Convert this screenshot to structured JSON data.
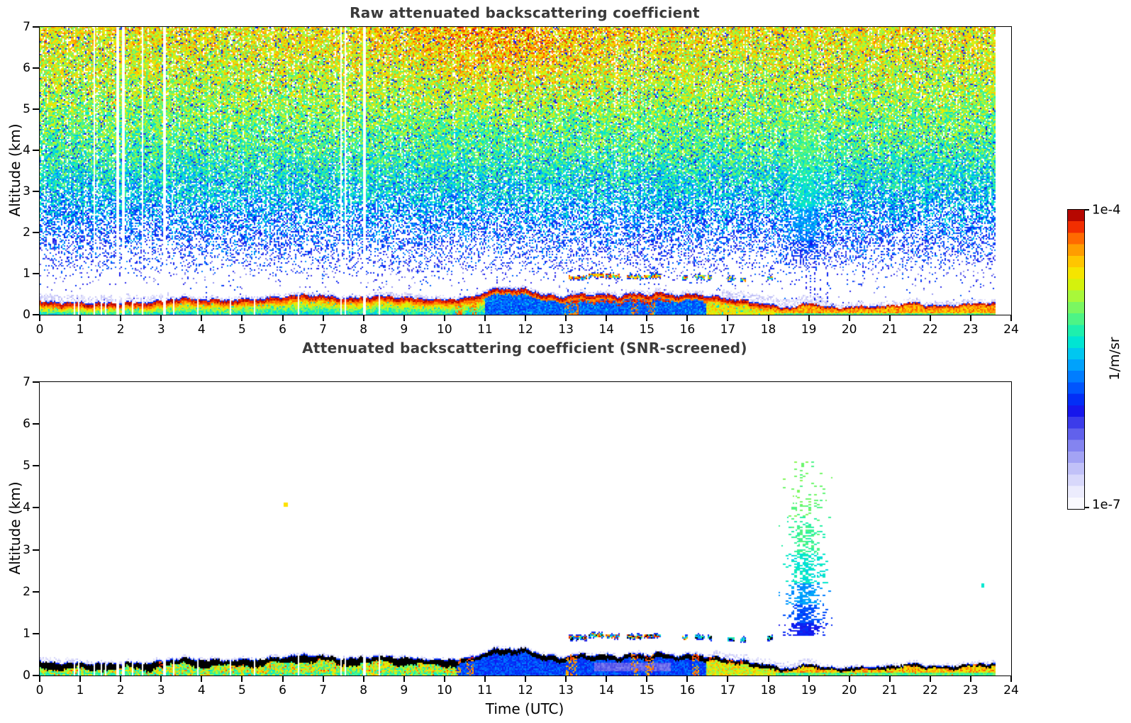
{
  "axes": {
    "xlabel": "Time (UTC)",
    "ylabel": "Altitude (km)",
    "x_ticks": [
      "0",
      "1",
      "2",
      "3",
      "4",
      "5",
      "6",
      "7",
      "8",
      "9",
      "10",
      "11",
      "12",
      "13",
      "14",
      "15",
      "16",
      "17",
      "18",
      "19",
      "20",
      "21",
      "22",
      "23",
      "24"
    ],
    "y_ticks": [
      "0",
      "1",
      "2",
      "3",
      "4",
      "5",
      "6",
      "7"
    ]
  },
  "colorbar": {
    "top_label": "1e-4",
    "bottom_label": "1e-7",
    "unit": "1/m/sr",
    "palette": [
      {
        "v": 0.0,
        "c": "#FFFFFF"
      },
      {
        "v": 0.05,
        "c": "#EFEFFD"
      },
      {
        "v": 0.09,
        "c": "#DCDCFB"
      },
      {
        "v": 0.13,
        "c": "#C3C3F8"
      },
      {
        "v": 0.17,
        "c": "#A5A5F4"
      },
      {
        "v": 0.21,
        "c": "#8585F0"
      },
      {
        "v": 0.25,
        "c": "#6060EC"
      },
      {
        "v": 0.29,
        "c": "#3A3AEA"
      },
      {
        "v": 0.33,
        "c": "#1414EC"
      },
      {
        "v": 0.37,
        "c": "#0033F8"
      },
      {
        "v": 0.42,
        "c": "#0066FF"
      },
      {
        "v": 0.47,
        "c": "#0099FF"
      },
      {
        "v": 0.52,
        "c": "#00C8F0"
      },
      {
        "v": 0.56,
        "c": "#00E8D0"
      },
      {
        "v": 0.6,
        "c": "#22F0A8"
      },
      {
        "v": 0.64,
        "c": "#55F580"
      },
      {
        "v": 0.68,
        "c": "#84F858"
      },
      {
        "v": 0.72,
        "c": "#B4F830"
      },
      {
        "v": 0.76,
        "c": "#E0F000"
      },
      {
        "v": 0.8,
        "c": "#FFE000"
      },
      {
        "v": 0.84,
        "c": "#FFB800"
      },
      {
        "v": 0.88,
        "c": "#FF8C00"
      },
      {
        "v": 0.91,
        "c": "#FF5E00"
      },
      {
        "v": 0.94,
        "c": "#F43000"
      },
      {
        "v": 0.97,
        "c": "#CC0A00"
      },
      {
        "v": 1.0,
        "c": "#8C0000"
      }
    ]
  },
  "chart_data": [
    {
      "type": "heatmap",
      "title": "Raw attenuated backscattering coefficient",
      "xlabel": "Time (UTC)",
      "ylabel": "Altitude (km)",
      "x_range": [
        0,
        24
      ],
      "y_range": [
        0,
        7
      ],
      "x_data_end": 23.62,
      "value_scale": {
        "min": "1e-7",
        "max": "1e-4",
        "unit": "1/m/sr"
      },
      "features": {
        "boundary_layer_top_km": [
          [
            0,
            0.33
          ],
          [
            0.5,
            0.3
          ],
          [
            1,
            0.3
          ],
          [
            1.5,
            0.29
          ],
          [
            2,
            0.3
          ],
          [
            2.5,
            0.31
          ],
          [
            3,
            0.34
          ],
          [
            3.3,
            0.4
          ],
          [
            3.6,
            0.42
          ],
          [
            4,
            0.38
          ],
          [
            4.5,
            0.37
          ],
          [
            5,
            0.38
          ],
          [
            5.5,
            0.4
          ],
          [
            6,
            0.45
          ],
          [
            6.3,
            0.48
          ],
          [
            6.6,
            0.5
          ],
          [
            7,
            0.47
          ],
          [
            7.3,
            0.44
          ],
          [
            7.6,
            0.4
          ],
          [
            8,
            0.44
          ],
          [
            8.5,
            0.46
          ],
          [
            9,
            0.43
          ],
          [
            9.5,
            0.4
          ],
          [
            10,
            0.38
          ],
          [
            10.5,
            0.41
          ],
          [
            10.8,
            0.48
          ],
          [
            11,
            0.55
          ],
          [
            11.2,
            0.62
          ],
          [
            11.5,
            0.66
          ],
          [
            11.8,
            0.62
          ],
          [
            12,
            0.64
          ],
          [
            12.2,
            0.58
          ],
          [
            12.4,
            0.5
          ],
          [
            12.7,
            0.46
          ],
          [
            13,
            0.44
          ],
          [
            13.2,
            0.52
          ],
          [
            13.5,
            0.5
          ],
          [
            13.8,
            0.48
          ],
          [
            14,
            0.5
          ],
          [
            14.3,
            0.46
          ],
          [
            14.6,
            0.52
          ],
          [
            15,
            0.5
          ],
          [
            15.3,
            0.55
          ],
          [
            15.6,
            0.5
          ],
          [
            15.9,
            0.47
          ],
          [
            16.2,
            0.52
          ],
          [
            16.5,
            0.46
          ],
          [
            16.8,
            0.42
          ],
          [
            17.2,
            0.38
          ],
          [
            17.6,
            0.32
          ],
          [
            18,
            0.26
          ],
          [
            18.3,
            0.18
          ],
          [
            18.6,
            0.18
          ],
          [
            18.9,
            0.26
          ],
          [
            19.1,
            0.3
          ],
          [
            19.3,
            0.22
          ],
          [
            19.6,
            0.18
          ],
          [
            20,
            0.2
          ],
          [
            20.5,
            0.21
          ],
          [
            21,
            0.22
          ],
          [
            21.3,
            0.27
          ],
          [
            21.6,
            0.3
          ],
          [
            21.9,
            0.24
          ],
          [
            22.2,
            0.22
          ],
          [
            22.6,
            0.24
          ],
          [
            23,
            0.27
          ],
          [
            23.3,
            0.29
          ],
          [
            23.62,
            0.28
          ]
        ],
        "full_gaps_utc": [
          1.35,
          1.93,
          2.07,
          2.54,
          3.08,
          7.45,
          7.56,
          8.02
        ],
        "layer_gaps_utc": [
          0.86,
          0.96,
          1.52,
          1.62,
          2.3,
          3.3,
          3.9,
          4.7,
          5.3,
          6.4,
          6.55,
          8.4,
          8.55
        ],
        "cloud_streaks": [
          {
            "t0": 13.08,
            "t1": 13.52,
            "z": 0.9
          },
          {
            "t0": 13.56,
            "t1": 13.94,
            "z": 0.96
          },
          {
            "t0": 13.98,
            "t1": 14.34,
            "z": 0.94
          },
          {
            "t0": 14.52,
            "t1": 14.9,
            "z": 0.92
          },
          {
            "t0": 14.94,
            "t1": 15.34,
            "z": 0.94
          },
          {
            "t0": 15.88,
            "t1": 16.0,
            "z": 0.9
          },
          {
            "t0": 16.18,
            "t1": 16.42,
            "z": 0.92,
            "cool": 1
          },
          {
            "t0": 16.5,
            "t1": 16.62,
            "z": 0.9,
            "cool": 1
          },
          {
            "t0": 17.0,
            "t1": 17.16,
            "z": 0.87,
            "cool": 1
          },
          {
            "t0": 17.3,
            "t1": 17.44,
            "z": 0.85,
            "cool": 1
          },
          {
            "t0": 17.96,
            "t1": 18.1,
            "z": 0.9,
            "cool": 1
          }
        ],
        "second_layer_line": {
          "t0": 13.05,
          "t1": 15.6,
          "depth_km": 0.19
        },
        "warm_streaks_utc": [
          [
            10.28,
            10.45
          ],
          [
            10.6,
            10.78
          ],
          [
            12.95,
            13.3
          ],
          [
            14.6,
            14.8
          ],
          [
            15.0,
            15.2
          ]
        ],
        "blue_attenuated_fill_utc": [
          11.0,
          16.45
        ],
        "virga_plume": {
          "t0": 18.25,
          "t1": 19.7,
          "center": 18.92,
          "z_bottom": 1.0,
          "z_top": 5.4
        },
        "drizzle_columns_utc": [
          18.95,
          19.05,
          19.15,
          19.3,
          19.45
        ],
        "noise_profile_alt_value": [
          [
            0.9,
            0.3
          ],
          [
            2,
            0.41
          ],
          [
            3,
            0.53
          ],
          [
            4,
            0.62
          ],
          [
            5,
            0.68
          ],
          [
            6,
            0.74
          ],
          [
            7,
            0.78
          ]
        ],
        "warm_noise_center_utc": 11.5,
        "fringe_zones": [
          [
            0,
            3.2,
            0.16
          ],
          [
            8,
            10,
            0.08
          ],
          [
            13,
            16.4,
            0.08
          ],
          [
            16.8,
            19.5,
            0.2
          ],
          [
            19.5,
            23.62,
            0.09
          ]
        ]
      }
    },
    {
      "type": "heatmap",
      "title": "Attenuated backscattering coefficient (SNR-screened)",
      "xlabel": "Time (UTC)",
      "ylabel": "Altitude (km)",
      "x_range": [
        0,
        24
      ],
      "y_range": [
        0,
        7
      ],
      "x_data_end": 23.62,
      "value_scale": {
        "min": "1e-7",
        "max": "1e-4",
        "unit": "1/m/sr"
      },
      "features": {
        "saturated_black_cap": true,
        "blue_attenuated_fill_utc": [
          10.3,
          16.45
        ],
        "purple_patch": {
          "t0": 13.7,
          "t1": 15.6,
          "z0": 0.1,
          "z1": 0.3
        },
        "warm_streaks_utc": [
          [
            2.95,
            3.05
          ],
          [
            6.86,
            6.94
          ],
          [
            10.3,
            10.42
          ],
          [
            10.55,
            10.72
          ],
          [
            13.0,
            13.28
          ],
          [
            14.6,
            14.78
          ],
          [
            14.95,
            15.18
          ],
          [
            16.1,
            16.3
          ],
          [
            16.55,
            16.72
          ],
          [
            17.0,
            17.38
          ],
          [
            20.35,
            20.45
          ],
          [
            23.05,
            23.15
          ]
        ],
        "virga_plume": {
          "t0": 18.25,
          "t1": 19.6,
          "center": 18.92,
          "z_bottom": 0.95,
          "z_top": 5.15
        },
        "isolated_specks": [
          {
            "t": 6.08,
            "z": 4.07,
            "v": 0.8
          },
          {
            "t": 18.85,
            "z": 5.03,
            "v": 0.66
          },
          {
            "t": 23.3,
            "z": 2.15,
            "v": 0.56
          }
        ]
      }
    }
  ]
}
